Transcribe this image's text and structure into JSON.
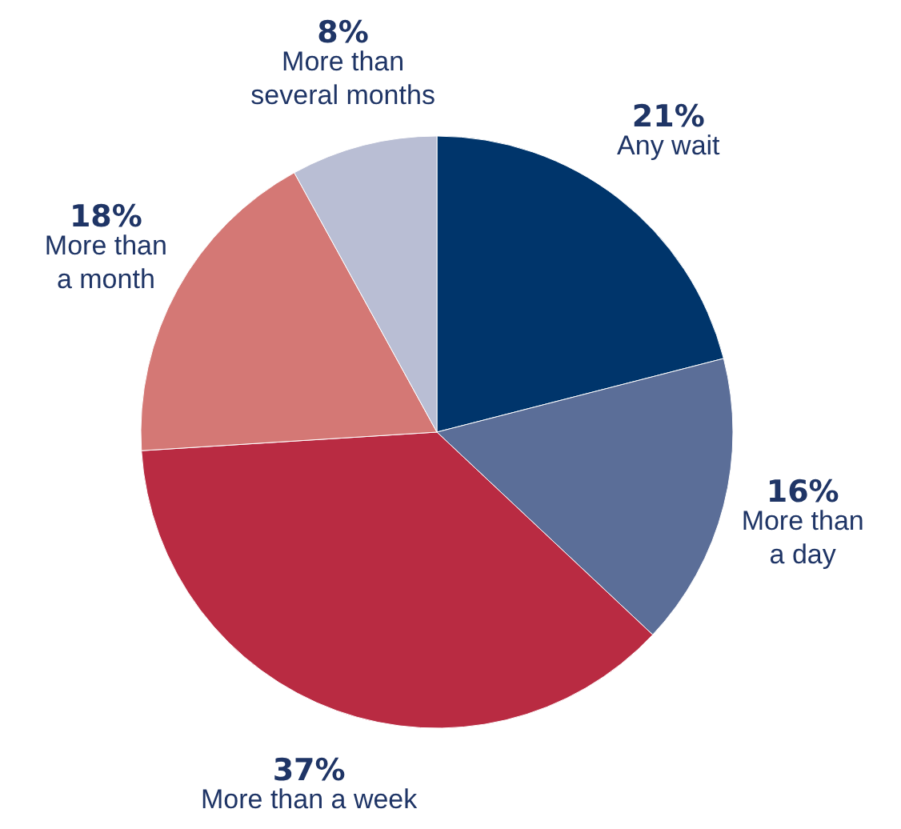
{
  "chart_data": {
    "type": "pie",
    "categories": [
      "Any wait",
      "More than\na day",
      "More than a week",
      "More than\na month",
      "More than\nseveral months"
    ],
    "values": [
      21,
      16,
      37,
      18,
      8
    ],
    "value_labels": [
      "21%",
      "16%",
      "37%",
      "18%",
      "8%"
    ],
    "colors": [
      "#00356b",
      "#5b6e98",
      "#b92b42",
      "#d47875",
      "#b9bed4"
    ]
  }
}
